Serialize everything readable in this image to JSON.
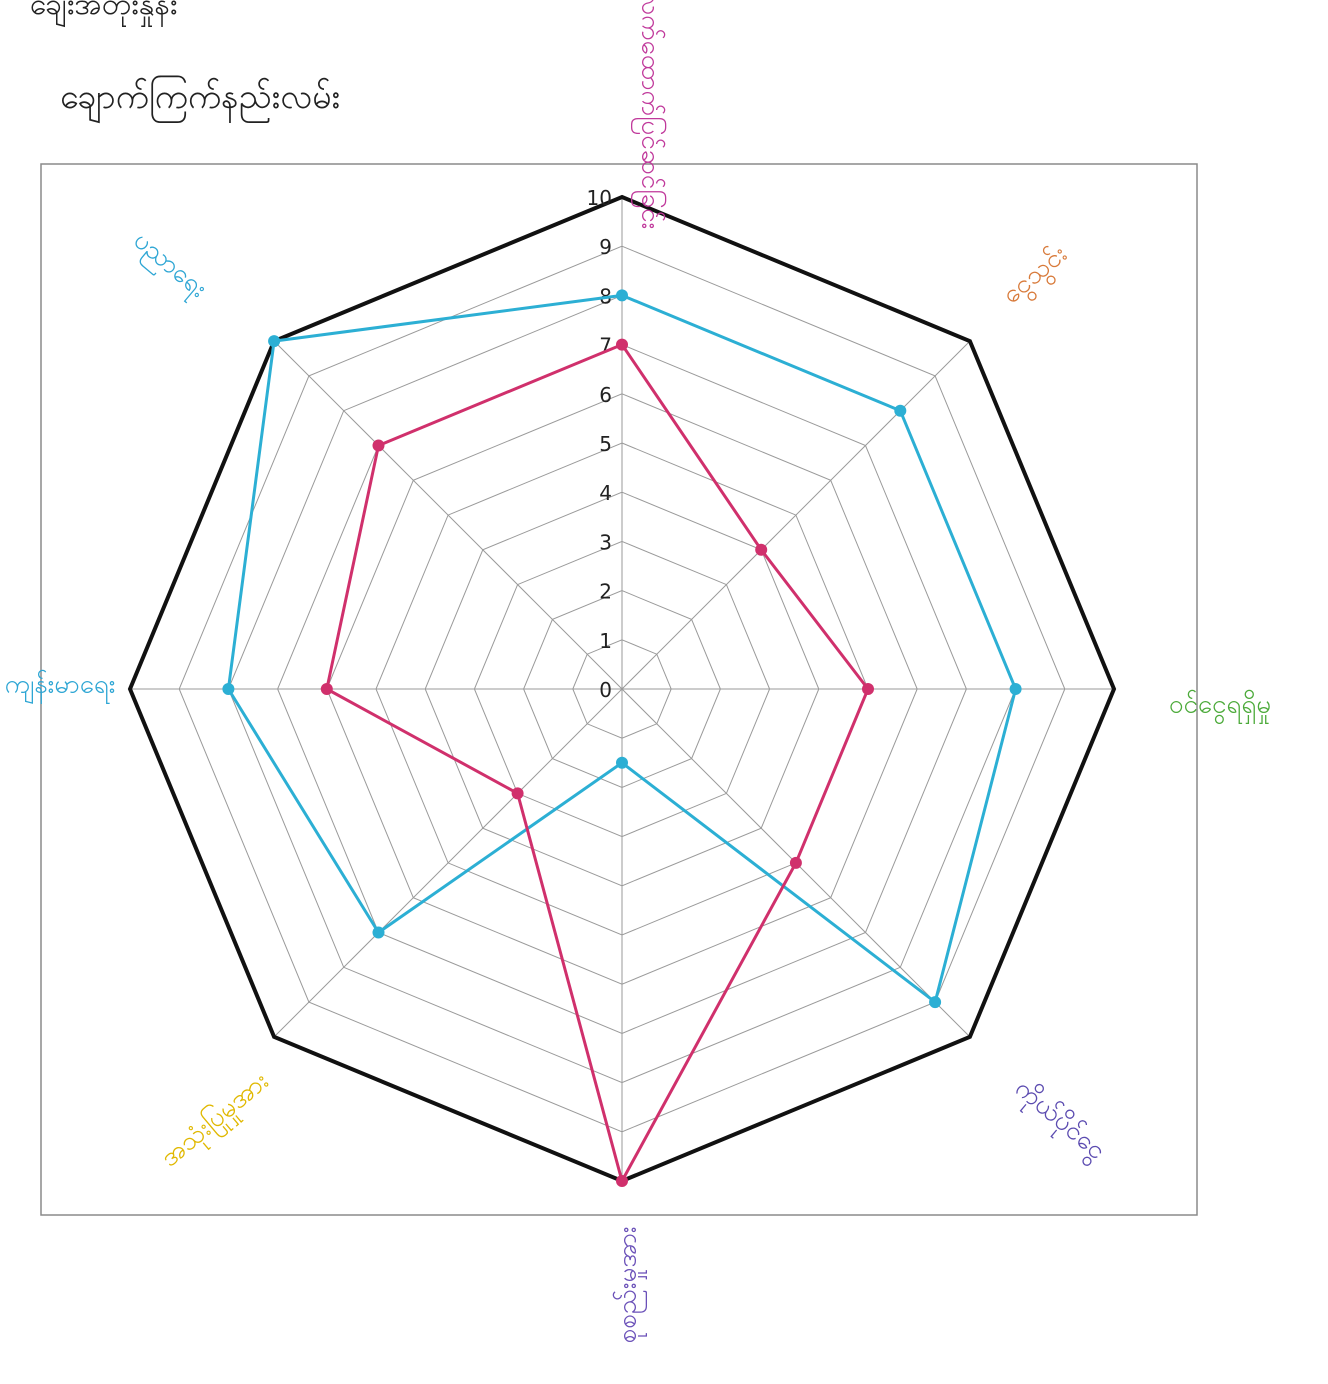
{
  "header": {
    "line1": "ချေးအတိုးနှုန်း",
    "line2": "ချောက်ကြက်နည်းလမ်း"
  },
  "chart_data": {
    "type": "radar",
    "rmin": 0,
    "rmax": 10,
    "ticks": [
      0,
      1,
      2,
      3,
      4,
      5,
      6,
      7,
      8,
      9,
      10
    ],
    "axes": [
      {
        "label": "လက်ထောက်ပြင်ဆင်ခြင်း",
        "color": "#c0399b"
      },
      {
        "label": "ငွေသွင်း",
        "color": "#d87a3a"
      },
      {
        "label": "ဝင်ငွေရရှိမှု",
        "color": "#4caa3a"
      },
      {
        "label": "ကိုယ်ပိုင်ငွေ",
        "color": "#5b4bb0"
      },
      {
        "label": "စုစည်းမှုအား",
        "color": "#6a50b8"
      },
      {
        "label": "အသုံးပြုမှုအား",
        "color": "#e0b800"
      },
      {
        "label": "ကျန်းမာရေး",
        "color": "#2ea6d4"
      },
      {
        "label": "ပညာရေး",
        "color": "#2ea6d4"
      }
    ],
    "series": [
      {
        "color": "#2cafd4",
        "values": [
          8,
          8,
          8,
          9,
          1.5,
          7,
          8,
          10
        ]
      },
      {
        "color": "#d0306c",
        "values": [
          7,
          4,
          5,
          5,
          10,
          3,
          6,
          7
        ]
      }
    ],
    "grid": true
  }
}
